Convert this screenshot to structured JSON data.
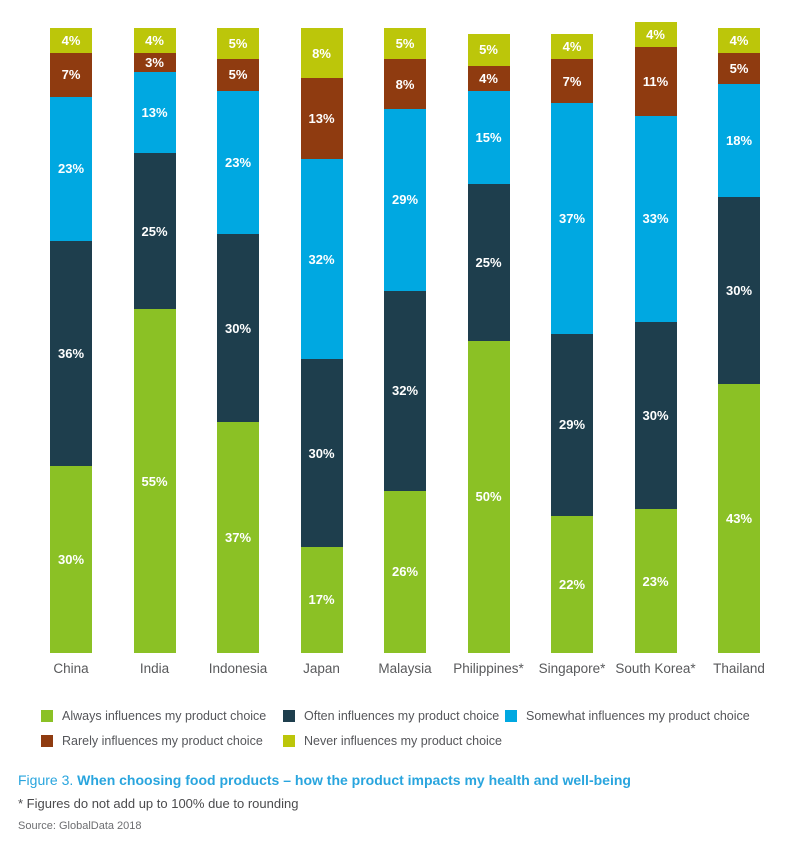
{
  "chart_data": {
    "type": "bar",
    "variant": "stacked-vertical",
    "categories": [
      "China",
      "India",
      "Indonesia",
      "Japan",
      "Malaysia",
      "Philippines*",
      "Singapore*",
      "South Korea*",
      "Thailand"
    ],
    "series": [
      {
        "name": "Always influences my product choice",
        "color": "#8BC125",
        "values": [
          30,
          55,
          37,
          17,
          26,
          50,
          22,
          23,
          43
        ]
      },
      {
        "name": "Often influences my product choice",
        "color": "#1E3E4D",
        "values": [
          36,
          25,
          30,
          30,
          32,
          25,
          29,
          30,
          30
        ]
      },
      {
        "name": "Somewhat influences my product choice",
        "color": "#00A8E1",
        "values": [
          23,
          13,
          23,
          32,
          29,
          15,
          37,
          33,
          18
        ]
      },
      {
        "name": "Rarely influences my product choice",
        "color": "#8F3B10",
        "values": [
          7,
          3,
          5,
          13,
          8,
          4,
          7,
          11,
          5
        ]
      },
      {
        "name": "Never influences my product choice",
        "color": "#BCC60A",
        "values": [
          4,
          4,
          5,
          8,
          5,
          5,
          4,
          4,
          4
        ]
      }
    ],
    "value_suffix": "%",
    "value_label_color": "#FFFFFF",
    "axis": {
      "unit": "percent",
      "min": 0,
      "max": 101,
      "gridlines": false,
      "axes_visible": false
    },
    "legend_position": "bottom",
    "note": "Totals differ from 100% for starred countries due to rounding"
  },
  "legend": {
    "rows": 2,
    "items_per_row": [
      3,
      2
    ]
  },
  "caption": {
    "figure_label": "Figure 3.",
    "title": " When choosing food products – how the product impacts my health and well-being",
    "footnote": "* Figures do not add up to 100% due to rounding",
    "source": "Source: GlobalData 2018"
  },
  "colors": {
    "caption_blue": "#29A5DE",
    "category_label": "#58595B",
    "legend_text": "#55565A",
    "footnote_text": "#4B4B4D",
    "source_text": "#6D6E71",
    "background": "#FFFFFF"
  }
}
